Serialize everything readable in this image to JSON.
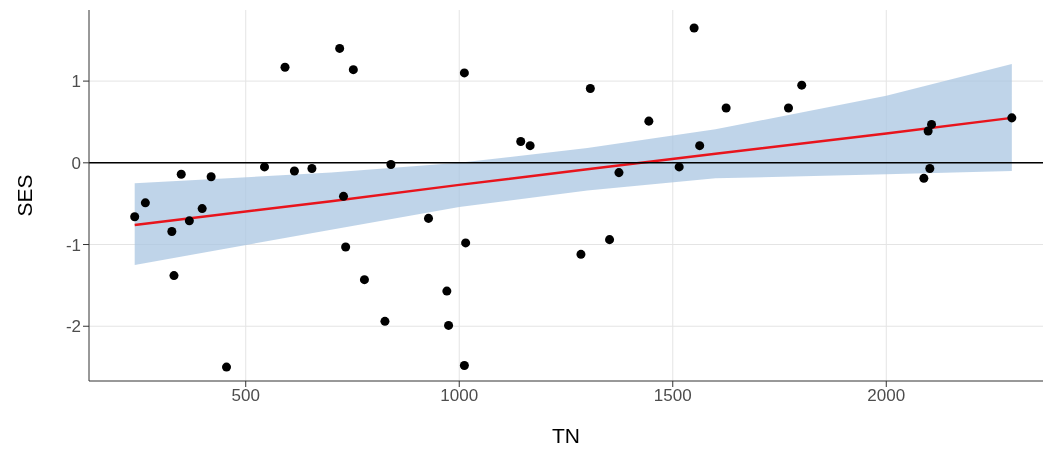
{
  "chart_data": {
    "type": "scatter",
    "xlabel": "TN",
    "ylabel": "SES",
    "xlim": [
      133,
      2367
    ],
    "xticks": [
      500,
      1000,
      1500,
      2000
    ],
    "ylim": [
      -2.67,
      1.87
    ],
    "yticks": [
      -2,
      -1,
      0,
      1
    ],
    "grid": true,
    "ref_lines": [
      {
        "axis": "y",
        "value": 0,
        "color": "#000000"
      }
    ],
    "series": [
      {
        "marker": "circle",
        "color": "#000000",
        "x": [
          240,
          265,
          327,
          332,
          349,
          368,
          398,
          419,
          455,
          544,
          592,
          614,
          655,
          720,
          729,
          734,
          752,
          778,
          826,
          840,
          928,
          971,
          975,
          1012,
          1012,
          1015,
          1144,
          1166,
          1285,
          1307,
          1352,
          1374,
          1444,
          1515,
          1550,
          1563,
          1625,
          1771,
          1802,
          2088,
          2102,
          2098,
          2106,
          2294
        ],
        "values": [
          -0.66,
          -0.49,
          -0.84,
          -1.38,
          -0.14,
          -0.71,
          -0.56,
          -0.17,
          -2.5,
          -0.05,
          1.17,
          -0.1,
          -0.07,
          1.4,
          -0.41,
          -1.03,
          1.14,
          -1.43,
          -1.94,
          -0.02,
          -0.68,
          -1.57,
          -1.99,
          1.1,
          -2.48,
          -0.98,
          0.26,
          0.21,
          -1.12,
          0.91,
          -0.94,
          -0.12,
          0.51,
          -0.05,
          1.65,
          0.21,
          0.67,
          0.67,
          0.95,
          -0.19,
          -0.07,
          0.39,
          0.47,
          0.55
        ]
      },
      {
        "type": "line",
        "color": "#e8141c",
        "x": [
          240,
          700,
          1000,
          1300,
          1600,
          2000,
          2294
        ],
        "values": [
          -0.76,
          -0.47,
          -0.27,
          -0.08,
          0.11,
          0.36,
          0.55
        ],
        "lower": [
          -1.25,
          -0.82,
          -0.54,
          -0.34,
          -0.19,
          -0.14,
          -0.1
        ],
        "upper": [
          -0.25,
          -0.12,
          0.0,
          0.18,
          0.41,
          0.82,
          1.21
        ]
      }
    ]
  }
}
